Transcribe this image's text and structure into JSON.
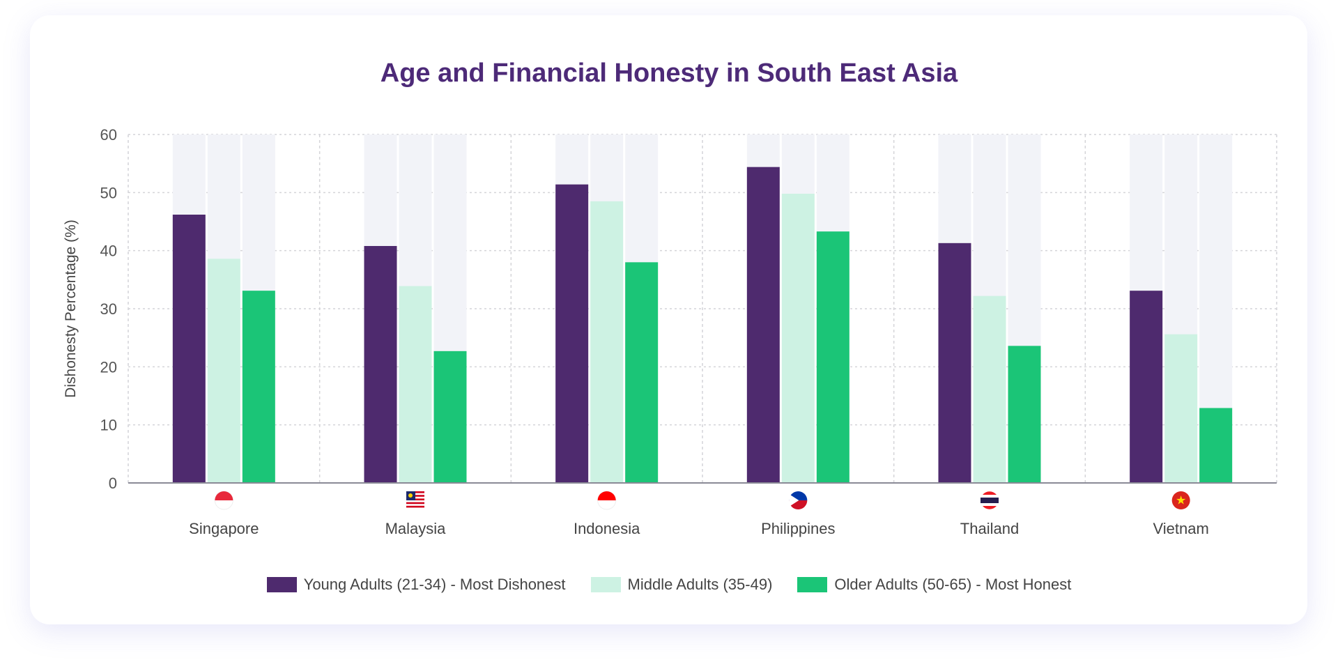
{
  "chart_data": {
    "type": "bar",
    "title": "Age and Financial Honesty in South East Asia",
    "xlabel": "",
    "ylabel": "Dishonesty Percentage (%)",
    "ylim": [
      0,
      60
    ],
    "yticks": [
      "0",
      "10",
      "20",
      "30",
      "40",
      "50",
      "60"
    ],
    "grid": true,
    "legend_position": "bottom",
    "categories": [
      "Singapore",
      "Malaysia",
      "Indonesia",
      "Philippines",
      "Thailand",
      "Vietnam"
    ],
    "flag_icons": [
      "singapore-flag-icon",
      "malaysia-flag-icon",
      "indonesia-flag-icon",
      "philippines-flag-icon",
      "thailand-flag-icon",
      "vietnam-flag-icon"
    ],
    "series": [
      {
        "name": "Young Adults (21-34) - Most Dishonest",
        "color": "#4e2a6e",
        "values": [
          46.2,
          40.8,
          51.4,
          54.4,
          41.3,
          33.1
        ]
      },
      {
        "name": "Middle Adults (35-49)",
        "color": "#cdf2e3",
        "values": [
          38.6,
          33.9,
          48.5,
          49.8,
          32.2,
          25.6
        ]
      },
      {
        "name": "Older Adults (50-65) - Most Honest",
        "color": "#1bc577",
        "values": [
          33.1,
          22.7,
          38.0,
          43.3,
          23.6,
          12.9
        ]
      }
    ],
    "track_color": "#f2f3f8"
  }
}
